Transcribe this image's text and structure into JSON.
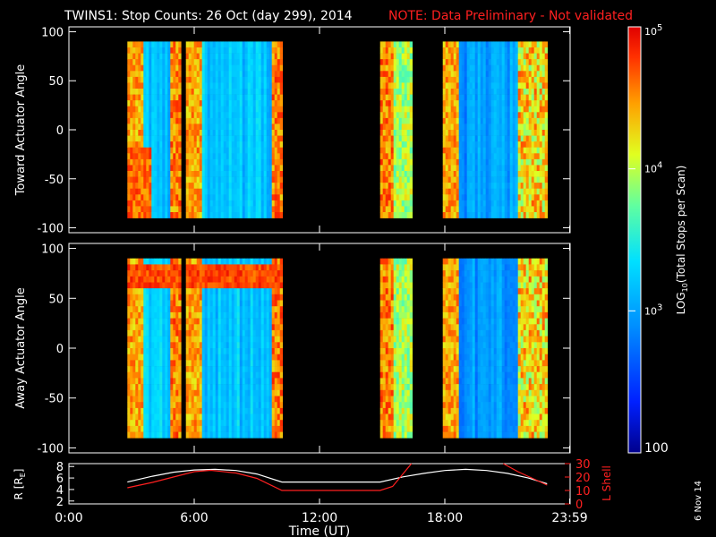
{
  "title": "TWINS1: Stop Counts: 26 Oct (day 299), 2014",
  "note": "NOTE: Data Preliminary - Not validated",
  "footer_date": "6 Nov 14",
  "colors": {
    "note": "#ff2020",
    "l_shell_line": "#ff2020",
    "r_line": "#ffffff"
  },
  "chart_data": [
    {
      "type": "heatmap",
      "panel": "toward",
      "ylabel": "Toward Actuator Angle",
      "ylim": [
        -105,
        105
      ],
      "yticks": [
        100,
        50,
        0,
        -50,
        -100
      ],
      "xlim": [
        0,
        24
      ],
      "data_hours": [
        [
          2.8,
          5.3
        ],
        [
          5.6,
          10.2
        ],
        [
          14.9,
          16.4
        ],
        [
          17.9,
          22.9
        ]
      ],
      "dominant_level": "~10^3 (cyan) with orange bands near edges"
    },
    {
      "type": "heatmap",
      "panel": "away",
      "ylabel": "Away Actuator Angle",
      "ylim": [
        -105,
        105
      ],
      "yticks": [
        100,
        50,
        0,
        -50,
        -100
      ],
      "xlim": [
        0,
        24
      ],
      "data_hours": [
        [
          2.8,
          5.3
        ],
        [
          5.6,
          10.2
        ],
        [
          14.9,
          16.4
        ],
        [
          17.9,
          22.9
        ]
      ],
      "dominant_level": "~10^3 (cyan) with red band near +75 deg"
    },
    {
      "type": "line",
      "panel": "orbit",
      "xlabel": "Time (UT)",
      "xticks": [
        "0:00",
        "6:00",
        "12:00",
        "18:00",
        "23:59"
      ],
      "left_ylabel": "R [R",
      "left_ylabel_sub": "E",
      "left_ylabel_end": "]",
      "left_ylim": [
        1.5,
        8.5
      ],
      "left_yticks": [
        "8",
        "6",
        "4",
        "2"
      ],
      "right_ylabel": "L Shell",
      "right_ylim": [
        0,
        30
      ],
      "right_yticks": [
        "30",
        "20",
        "10",
        "0"
      ],
      "series": [
        {
          "name": "R",
          "x": [
            2.8,
            4,
            5,
            6,
            7,
            8,
            9,
            10.2,
            12,
            13,
            14.9,
            16,
            17,
            18,
            19,
            20,
            21,
            22,
            22.9
          ],
          "values": [
            5.3,
            6.3,
            7.0,
            7.4,
            7.5,
            7.3,
            6.7,
            5.3,
            5.3,
            5.3,
            5.3,
            6.2,
            6.8,
            7.3,
            7.5,
            7.3,
            6.8,
            6.0,
            5.0
          ]
        },
        {
          "name": "L Shell",
          "x": [
            2.8,
            4,
            5,
            6,
            6.8,
            8,
            9,
            10.2,
            12,
            13,
            14.9,
            15.5,
            16.4
          ],
          "values": [
            12,
            16,
            20,
            24,
            25,
            23,
            19,
            10,
            10,
            10,
            10,
            13,
            30
          ],
          "x2": [
            20.8,
            21.5,
            22.2,
            22.9
          ],
          "values2": [
            30,
            24,
            19,
            14
          ]
        }
      ]
    }
  ],
  "colorbar": {
    "label": "LOG",
    "label_sub": "10",
    "label_end": "(Total Stops per Scan)",
    "ticks": [
      {
        "base": "10",
        "exp": "5"
      },
      {
        "base": "10",
        "exp": "4"
      },
      {
        "base": "10",
        "exp": "3"
      },
      {
        "base": "100",
        "exp": ""
      }
    ],
    "range": [
      100,
      100000
    ]
  }
}
